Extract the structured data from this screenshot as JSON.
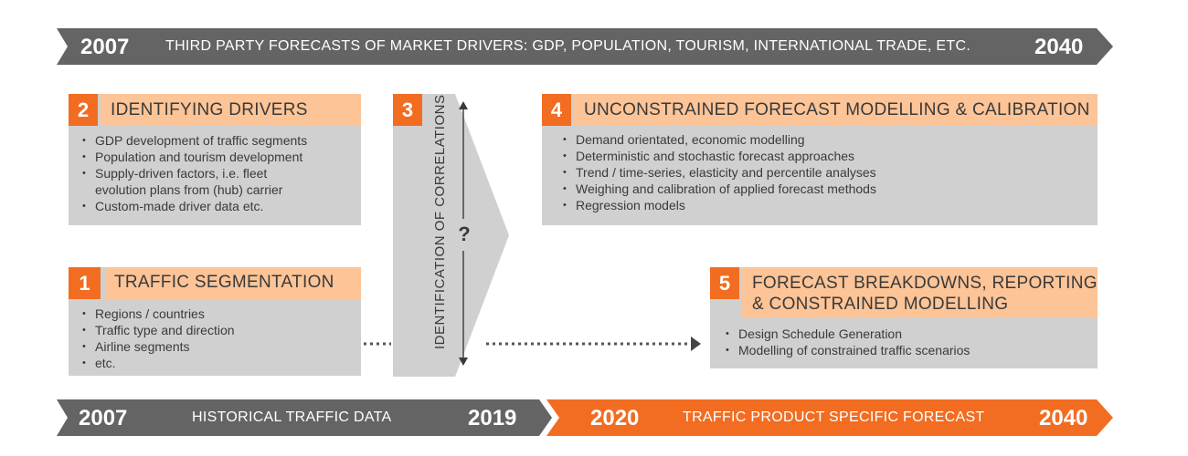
{
  "top_bar": {
    "start_year": "2007",
    "label": "THIRD PARTY FORECASTS OF MARKET DRIVERS: GDP, POPULATION, TOURISM, INTERNATIONAL TRADE, ETC.",
    "end_year": "2040",
    "color": "#646464"
  },
  "bottom_bar": {
    "historical": {
      "start_year": "2007",
      "label": "HISTORICAL TRAFFIC DATA",
      "end_year": "2019",
      "color": "#646464"
    },
    "forecast": {
      "start_year": "2020",
      "label": "TRAFFIC PRODUCT SPECIFIC FORECAST",
      "end_year": "2040",
      "color": "#f26d21"
    }
  },
  "colors": {
    "accent": "#f26d21",
    "header": "#fcc497",
    "box": "#d0d0d0",
    "text": "#3a3a3a"
  },
  "steps": {
    "drivers": {
      "number": "2",
      "title": "IDENTIFYING DRIVERS",
      "items": [
        "GDP development of traffic segments",
        "Population and tourism development",
        "Supply-driven factors, i.e. fleet",
        "evolution plans from (hub) carrier",
        "Custom-made driver data etc."
      ]
    },
    "segmentation": {
      "number": "1",
      "title": "TRAFFIC SEGMENTATION",
      "items": [
        "Regions / countries",
        "Traffic type and direction",
        "Airline segments",
        "etc."
      ]
    },
    "correlations": {
      "number": "3",
      "label": "IDENTIFICATION OF CORRELATIONS",
      "symbol": "?"
    },
    "modelling": {
      "number": "4",
      "title": "UNCONSTRAINED FORECAST MODELLING & CALIBRATION",
      "items": [
        "Demand orientated, economic modelling",
        "Deterministic and stochastic forecast approaches",
        "Trend / time-series, elasticity and percentile analyses",
        "Weighing and calibration of applied forecast methods",
        "Regression models"
      ]
    },
    "breakdowns": {
      "number": "5",
      "title_line1": "FORECAST BREAKDOWNS, REPORTING",
      "title_line2": "& CONSTRAINED MODELLING",
      "items": [
        "Design Schedule Generation",
        "Modelling of constrained traffic scenarios"
      ]
    }
  }
}
